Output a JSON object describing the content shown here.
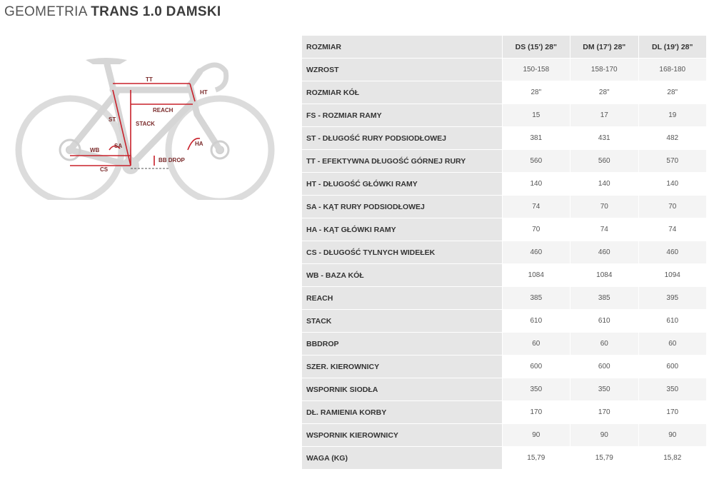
{
  "title": {
    "light": "GEOMETRIA",
    "bold": "TRANS 1.0 DAMSKI"
  },
  "diagram_labels": {
    "tt": "TT",
    "ht": "HT",
    "reach": "REACH",
    "st": "ST",
    "stack": "STACK",
    "wb": "WB",
    "sa": "SA",
    "ha": "HA",
    "bbdrop": "BB DROP",
    "cs": "CS"
  },
  "colors": {
    "header_bg": "#e6e6e6",
    "accent": "#c8202a"
  },
  "table": {
    "header": {
      "label": "ROZMIAR",
      "sizes": [
        "DS (15') 28\"",
        "DM (17') 28\"",
        "DL (19') 28\""
      ]
    },
    "rows": [
      {
        "label": "WZROST",
        "values": [
          "150-158",
          "158-170",
          "168-180"
        ]
      },
      {
        "label": "ROZMIAR KÓŁ",
        "values": [
          "28\"",
          "28\"",
          "28\""
        ]
      },
      {
        "label": "FS - ROZMIAR RAMY",
        "values": [
          "15",
          "17",
          "19"
        ]
      },
      {
        "label": "ST - DŁUGOŚĆ RURY PODSIODŁOWEJ",
        "values": [
          "381",
          "431",
          "482"
        ]
      },
      {
        "label": "TT - EFEKTYWNA DŁUGOŚĆ GÓRNEJ RURY",
        "values": [
          "560",
          "560",
          "570"
        ]
      },
      {
        "label": "HT - DŁUGOŚĆ GŁÓWKI RAMY",
        "values": [
          "140",
          "140",
          "140"
        ]
      },
      {
        "label": "SA - KĄT RURY PODSIODŁOWEJ",
        "values": [
          "74",
          "70",
          "70"
        ]
      },
      {
        "label": "HA - KĄT GŁÓWKI RAMY",
        "values": [
          "70",
          "74",
          "74"
        ]
      },
      {
        "label": "CS - DŁUGOŚĆ TYLNYCH WIDEŁEK",
        "values": [
          "460",
          "460",
          "460"
        ]
      },
      {
        "label": "WB - BAZA KÓŁ",
        "values": [
          "1084",
          "1084",
          "1094"
        ]
      },
      {
        "label": "REACH",
        "values": [
          "385",
          "385",
          "395"
        ]
      },
      {
        "label": "STACK",
        "values": [
          "610",
          "610",
          "610"
        ]
      },
      {
        "label": "BBDROP",
        "values": [
          "60",
          "60",
          "60"
        ]
      },
      {
        "label": "SZER. KIEROWNICY",
        "values": [
          "600",
          "600",
          "600"
        ]
      },
      {
        "label": "WSPORNIK SIODŁA",
        "values": [
          "350",
          "350",
          "350"
        ]
      },
      {
        "label": "DŁ. RAMIENIA KORBY",
        "values": [
          "170",
          "170",
          "170"
        ]
      },
      {
        "label": "WSPORNIK KIEROWNICY",
        "values": [
          "90",
          "90",
          "90"
        ]
      },
      {
        "label": "WAGA (KG)",
        "values": [
          "15,79",
          "15,79",
          "15,82"
        ]
      }
    ]
  }
}
